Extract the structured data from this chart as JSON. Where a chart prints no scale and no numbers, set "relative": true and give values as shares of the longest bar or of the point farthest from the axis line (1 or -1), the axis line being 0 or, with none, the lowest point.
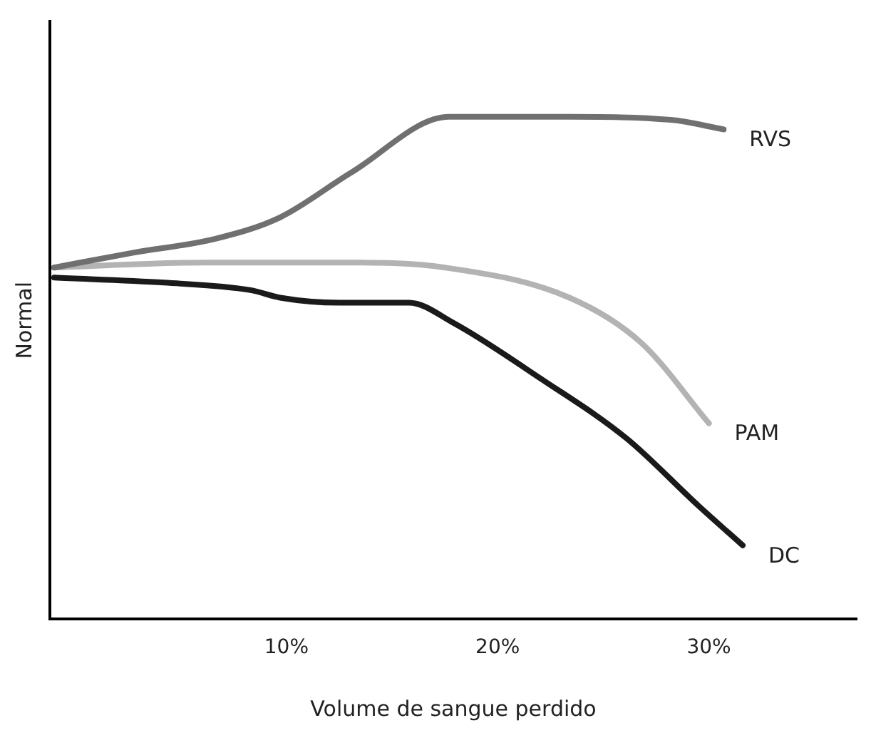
{
  "chart_data": {
    "type": "line",
    "xlabel": "Volume de sangue perdido",
    "ylabel": "Normal",
    "relative": true,
    "grid": false,
    "legend": false,
    "marker": "none",
    "line_style": "solid",
    "xlim": [
      -1.2,
      37
    ],
    "xticks": [
      {
        "value": 10,
        "label": "10%"
      },
      {
        "value": 20,
        "label": "20%"
      },
      {
        "value": 30,
        "label": "30%"
      }
    ],
    "series": [
      {
        "name": "RVS",
        "color": "#707070",
        "x": [
          -1,
          2.8,
          6.6,
          9.7,
          13.1,
          17.7,
          23.4,
          28.2,
          30.7
        ],
        "values": [
          0.7,
          0.73,
          0.757,
          0.8,
          0.89,
          1,
          1,
          0.994,
          0.975
        ]
      },
      {
        "name": "PAM",
        "color": "#b3b3b3",
        "x": [
          -1,
          6.2,
          12.7,
          17.5,
          23.4,
          26.8,
          30
        ],
        "values": [
          0.7,
          0.71,
          0.71,
          0.7,
          0.64,
          0.55,
          0.39
        ]
      },
      {
        "name": "DC",
        "color": "#1a1a1a",
        "x": [
          -1,
          4.2,
          8.3,
          9.7,
          12.5,
          15.8,
          17.9,
          22,
          26.1,
          29.5,
          31.6
        ],
        "values": [
          0.68,
          0.67,
          0.655,
          0.64,
          0.63,
          0.63,
          0.59,
          0.48,
          0.36,
          0.226,
          0.147
        ]
      }
    ]
  }
}
